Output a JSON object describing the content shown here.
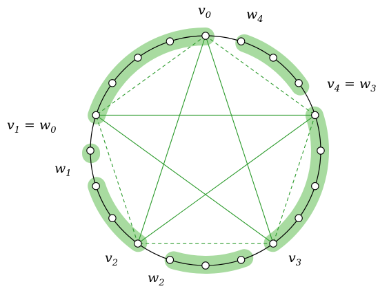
{
  "figure": {
    "colors": {
      "highlight": "#a8dba0",
      "edge": "#2a9a2a",
      "cycle": "#000000",
      "node_fill": "#ffffff"
    },
    "labels": {
      "v0": {
        "base": "v",
        "sub": "0",
        "rest": ""
      },
      "w4": {
        "base": "w",
        "sub": "4",
        "rest": ""
      },
      "v4": {
        "base": "v",
        "sub": "4",
        "rest": " = w",
        "sub2": "3"
      },
      "v1": {
        "base": "v",
        "sub": "1",
        "rest": " = w",
        "sub2": "0"
      },
      "w1": {
        "base": "w",
        "sub": "1",
        "rest": ""
      },
      "v2": {
        "base": "v",
        "sub": "2",
        "rest": ""
      },
      "w2": {
        "base": "w",
        "sub": "2",
        "rest": ""
      },
      "v3": {
        "base": "v",
        "sub": "3",
        "rest": ""
      }
    },
    "cycle_vertex_count": 20,
    "main_vertices": [
      "v0",
      "v4",
      "v3",
      "v2",
      "v1"
    ],
    "solid_edges": [
      [
        "v0",
        "v2"
      ],
      [
        "v0",
        "v3"
      ],
      [
        "v1",
        "v3"
      ],
      [
        "v1",
        "v4"
      ],
      [
        "v2",
        "v4"
      ]
    ],
    "dashed_edges": [
      [
        "v0",
        "v1"
      ],
      [
        "v0",
        "v4"
      ],
      [
        "v4",
        "v3"
      ],
      [
        "v3",
        "v2"
      ],
      [
        "v2",
        "v1"
      ]
    ]
  }
}
